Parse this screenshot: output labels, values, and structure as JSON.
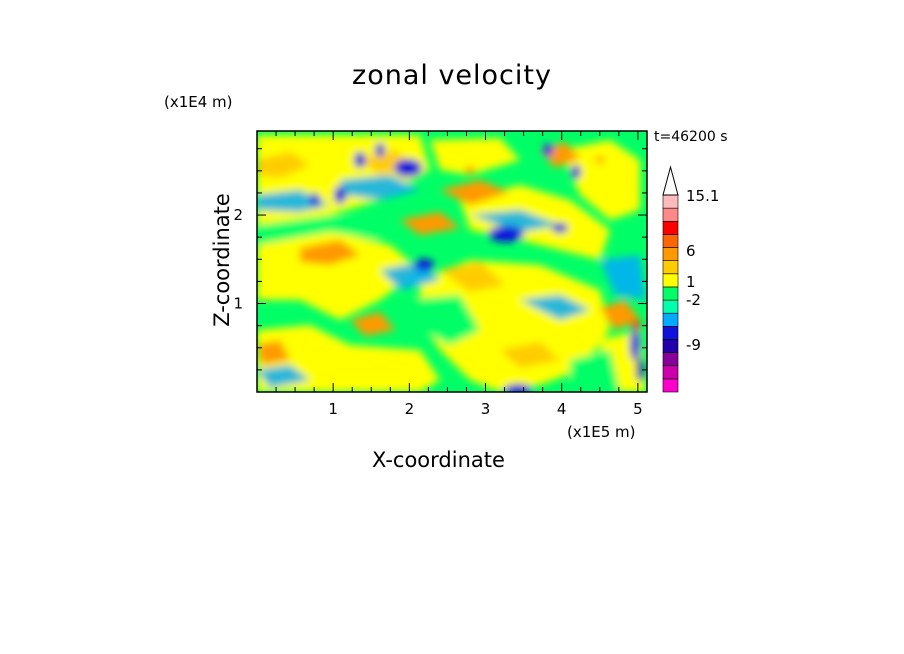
{
  "chart_data": {
    "type": "heatmap",
    "title": "zonal velocity",
    "xlabel": "X-coordinate",
    "ylabel": "Z-coordinate",
    "x_scale_label": "(x1E5 m)",
    "y_scale_label": "(x1E4 m)",
    "time_label": "t=46200 s",
    "xlim": [
      0,
      5.12
    ],
    "ylim": [
      0,
      2.95
    ],
    "x_ticks": [
      "1",
      "2",
      "3",
      "4",
      "5"
    ],
    "y_ticks": [
      "1",
      "2"
    ],
    "colorbar": {
      "labels": [
        "15.1",
        "6",
        "1",
        "-2",
        "-9"
      ],
      "colors": [
        "#ff00cc",
        "#cc00aa",
        "#880099",
        "#2200aa",
        "#1111dd",
        "#00aaff",
        "#00ffaa",
        "#00ff66",
        "#ffff00",
        "#ffcc00",
        "#ff9900",
        "#ff6600",
        "#ff0000",
        "#ff8888",
        "#ffbbbb"
      ]
    }
  }
}
